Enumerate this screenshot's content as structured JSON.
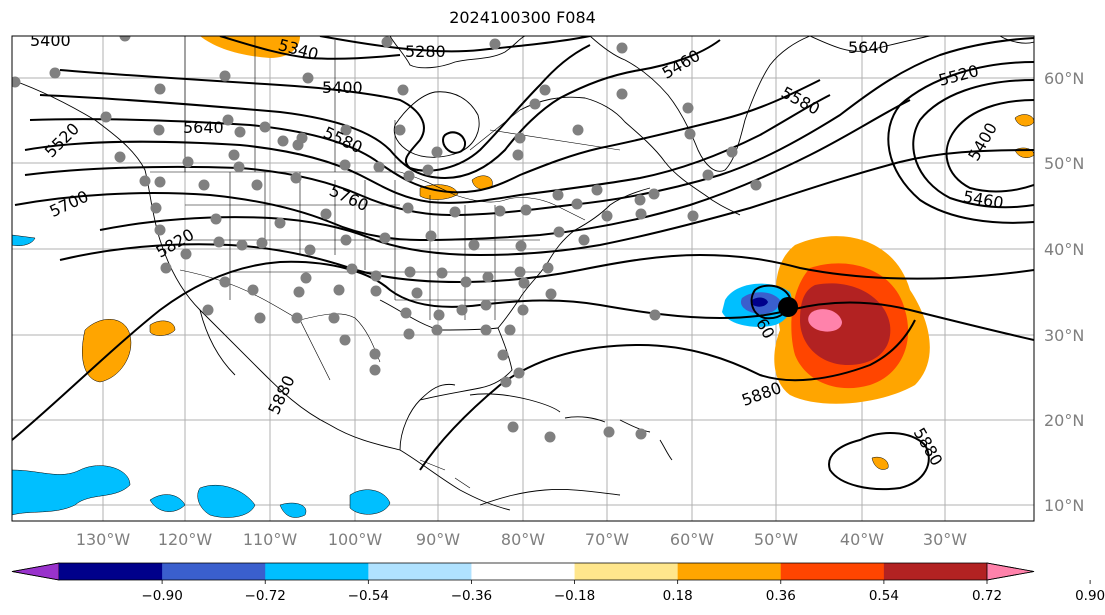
{
  "title": "2024100300 F084",
  "longitude_labels": [
    "130°W",
    "120°W",
    "110°W",
    "100°W",
    "90°W",
    "80°W",
    "70°W",
    "60°W",
    "50°W",
    "40°W",
    "30°W"
  ],
  "latitude_labels": [
    "60°N",
    "50°N",
    "40°N",
    "30°N",
    "20°N",
    "10°N"
  ],
  "colorbar": {
    "colors": [
      "#9932cc",
      "#00008b",
      "#3a5fcd",
      "#00bfff",
      "#b0e2ff",
      "#ffffff",
      "#ffe68c",
      "#ffa500",
      "#ff4500",
      "#b22222",
      "#ff82ab"
    ],
    "tick_labels": [
      "−0.90",
      "−0.72",
      "−0.54",
      "−0.36",
      "−0.18",
      "0.18",
      "0.36",
      "0.54",
      "0.72",
      "0.90"
    ]
  },
  "contour_labels": [
    "5340",
    "5280",
    "5460",
    "5640",
    "5520",
    "5400",
    "5580",
    "5400",
    "5640",
    "5580",
    "5520",
    "5400",
    "5700",
    "5760",
    "5460",
    "5820",
    "5880",
    "5880",
    "5880",
    "60"
  ]
}
